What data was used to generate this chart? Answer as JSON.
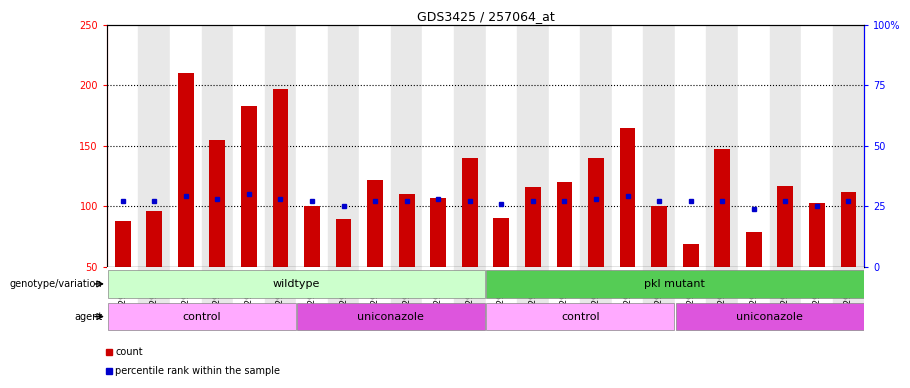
{
  "title": "GDS3425 / 257064_at",
  "samples": [
    "GSM299321",
    "GSM299322",
    "GSM299323",
    "GSM299324",
    "GSM299325",
    "GSM299326",
    "GSM299333",
    "GSM299334",
    "GSM299335",
    "GSM299336",
    "GSM299337",
    "GSM299338",
    "GSM299327",
    "GSM299328",
    "GSM299329",
    "GSM299330",
    "GSM299331",
    "GSM299332",
    "GSM299339",
    "GSM299340",
    "GSM299341",
    "GSM299408",
    "GSM299409",
    "GSM299410"
  ],
  "count_values": [
    88,
    96,
    210,
    155,
    183,
    197,
    100,
    89,
    122,
    110,
    107,
    140,
    90,
    116,
    120,
    140,
    165,
    100,
    69,
    147,
    79,
    117,
    103,
    112
  ],
  "percentile_values": [
    27,
    27,
    29,
    28,
    30,
    28,
    27,
    25,
    27,
    27,
    28,
    27,
    26,
    27,
    27,
    28,
    29,
    27,
    27,
    27,
    24,
    27,
    25,
    27
  ],
  "bar_color": "#cc0000",
  "dot_color": "#0000cc",
  "ylim_left": [
    50,
    250
  ],
  "ylim_right": [
    0,
    100
  ],
  "yticks_left": [
    50,
    100,
    150,
    200,
    250
  ],
  "ytick_labels_left": [
    "50",
    "100",
    "150",
    "200",
    "250"
  ],
  "yticks_right": [
    0,
    25,
    50,
    75,
    100
  ],
  "ytick_labels_right": [
    "0",
    "25",
    "50",
    "75",
    "100%"
  ],
  "hlines": [
    100,
    150,
    200
  ],
  "bg_colors": [
    "#ffffff",
    "#e8e8e8"
  ],
  "groups": {
    "genotype": [
      {
        "label": "wildtype",
        "start": 0,
        "end": 12,
        "color": "#ccffcc"
      },
      {
        "label": "pkl mutant",
        "start": 12,
        "end": 24,
        "color": "#55cc55"
      }
    ],
    "agent": [
      {
        "label": "control",
        "start": 0,
        "end": 6,
        "color": "#ffaaff"
      },
      {
        "label": "uniconazole",
        "start": 6,
        "end": 12,
        "color": "#dd55dd"
      },
      {
        "label": "control",
        "start": 12,
        "end": 18,
        "color": "#ffaaff"
      },
      {
        "label": "uniconazole",
        "start": 18,
        "end": 24,
        "color": "#dd55dd"
      }
    ]
  },
  "legend_items": [
    {
      "label": "count",
      "color": "#cc0000",
      "marker": "s"
    },
    {
      "label": "percentile rank within the sample",
      "color": "#0000cc",
      "marker": "s"
    }
  ],
  "bar_width": 0.5,
  "title_fontsize": 9,
  "tick_fontsize": 7,
  "label_fontsize": 7,
  "annot_fontsize": 8
}
